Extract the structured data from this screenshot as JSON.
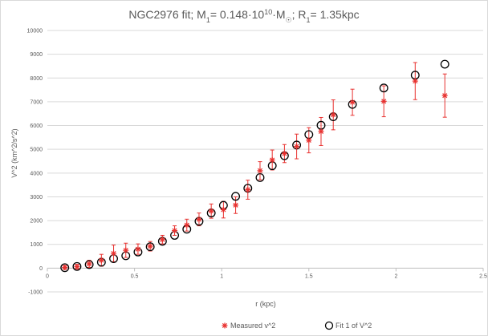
{
  "chart_data": {
    "type": "scatter",
    "title_parts": {
      "prefix": "NGC2976 fit; M",
      "sub1": "1",
      "mid1": "= 0.148·10",
      "sup": "10",
      "mid2": "·M",
      "sub_sun": "☉",
      "mid3": "; R",
      "sub2": "1",
      "suffix": "= 1.35kpc"
    },
    "xlabel": "r (kpc)",
    "ylabel": "V^2 (km^2/s^2)",
    "xlim": [
      0,
      2.5
    ],
    "ylim": [
      -1000,
      10000
    ],
    "xticks": [
      "0",
      "0.5",
      "1",
      "1.5",
      "2",
      "2.5"
    ],
    "yticks": [
      "-1000",
      "0",
      "1000",
      "2000",
      "3000",
      "4000",
      "5000",
      "6000",
      "7000",
      "8000",
      "9000",
      "10000"
    ],
    "grid": "horizontal",
    "legend_position": "bottom",
    "series": [
      {
        "name": "Measured v^2",
        "marker": "asterisk",
        "color": "#e8312f",
        "x": [
          0.1,
          0.17,
          0.24,
          0.31,
          0.38,
          0.45,
          0.52,
          0.59,
          0.66,
          0.73,
          0.8,
          0.87,
          0.94,
          1.01,
          1.08,
          1.15,
          1.22,
          1.29,
          1.36,
          1.43,
          1.5,
          1.57,
          1.64,
          1.75,
          1.93,
          2.11,
          2.28
        ],
        "y": [
          30,
          60,
          180,
          330,
          620,
          750,
          800,
          920,
          1200,
          1580,
          1810,
          2050,
          2400,
          2460,
          2650,
          3300,
          4100,
          4550,
          4820,
          5120,
          5380,
          5750,
          6450,
          6980,
          7020,
          7870,
          7260
        ],
        "err": [
          80,
          100,
          150,
          250,
          350,
          300,
          220,
          200,
          180,
          200,
          250,
          270,
          300,
          350,
          350,
          400,
          380,
          420,
          380,
          520,
          530,
          590,
          630,
          550,
          650,
          780,
          910
        ]
      },
      {
        "name": "Fit 1 of V^2",
        "marker": "circle",
        "color": "#000000",
        "x": [
          0.1,
          0.17,
          0.24,
          0.31,
          0.38,
          0.45,
          0.52,
          0.59,
          0.66,
          0.73,
          0.8,
          0.87,
          0.94,
          1.01,
          1.08,
          1.15,
          1.22,
          1.29,
          1.36,
          1.43,
          1.5,
          1.57,
          1.64,
          1.75,
          1.93,
          2.11,
          2.28
        ],
        "y": [
          20,
          70,
          150,
          250,
          400,
          520,
          680,
          900,
          1130,
          1380,
          1640,
          1970,
          2320,
          2640,
          3020,
          3360,
          3810,
          4310,
          4730,
          5180,
          5620,
          6010,
          6370,
          6890,
          7580,
          8120,
          8580
        ]
      }
    ]
  }
}
